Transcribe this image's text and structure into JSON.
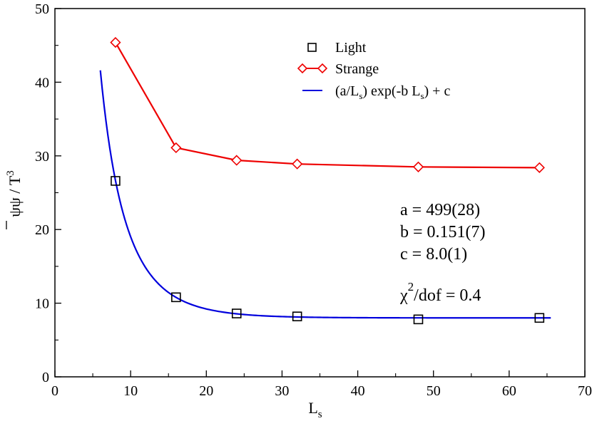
{
  "chart_data": {
    "type": "scatter",
    "xlabel": "L",
    "xlabel_sub": "s",
    "ylabel": "ψψ / T",
    "ylabel_sup": "3",
    "xlim": [
      0,
      70
    ],
    "ylim": [
      0,
      50
    ],
    "x_ticks": [
      0,
      10,
      20,
      30,
      40,
      50,
      60,
      70
    ],
    "y_ticks": [
      0,
      10,
      20,
      30,
      40,
      50
    ],
    "grid": false,
    "legend_position": "top-right",
    "series": [
      {
        "name": "Light",
        "marker": "square",
        "color": "#000000",
        "x": [
          8,
          16,
          24,
          32,
          48,
          64
        ],
        "y": [
          26.6,
          10.8,
          8.6,
          8.2,
          7.8,
          8.0
        ]
      },
      {
        "name": "Strange",
        "marker": "diamond",
        "line": true,
        "color": "#ee0000",
        "x": [
          8,
          16,
          24,
          32,
          48,
          64
        ],
        "y": [
          45.4,
          31.1,
          29.4,
          28.9,
          28.5,
          28.4
        ]
      }
    ],
    "fit": {
      "legend_parts": [
        "(a/L",
        "s",
        ") exp(-b L",
        "s",
        ") + c"
      ],
      "color": "#0000dd",
      "a": 499,
      "b": 0.151,
      "c": 8.0,
      "x_range": [
        6,
        65.5
      ]
    },
    "annotations": {
      "a": "a = 499(28)",
      "b": "b = 0.151(7)",
      "c": "c = 8.0(1)",
      "chi_symbol": "χ",
      "chi_sup": "2",
      "chi_rest": "/dof = 0.4"
    }
  }
}
